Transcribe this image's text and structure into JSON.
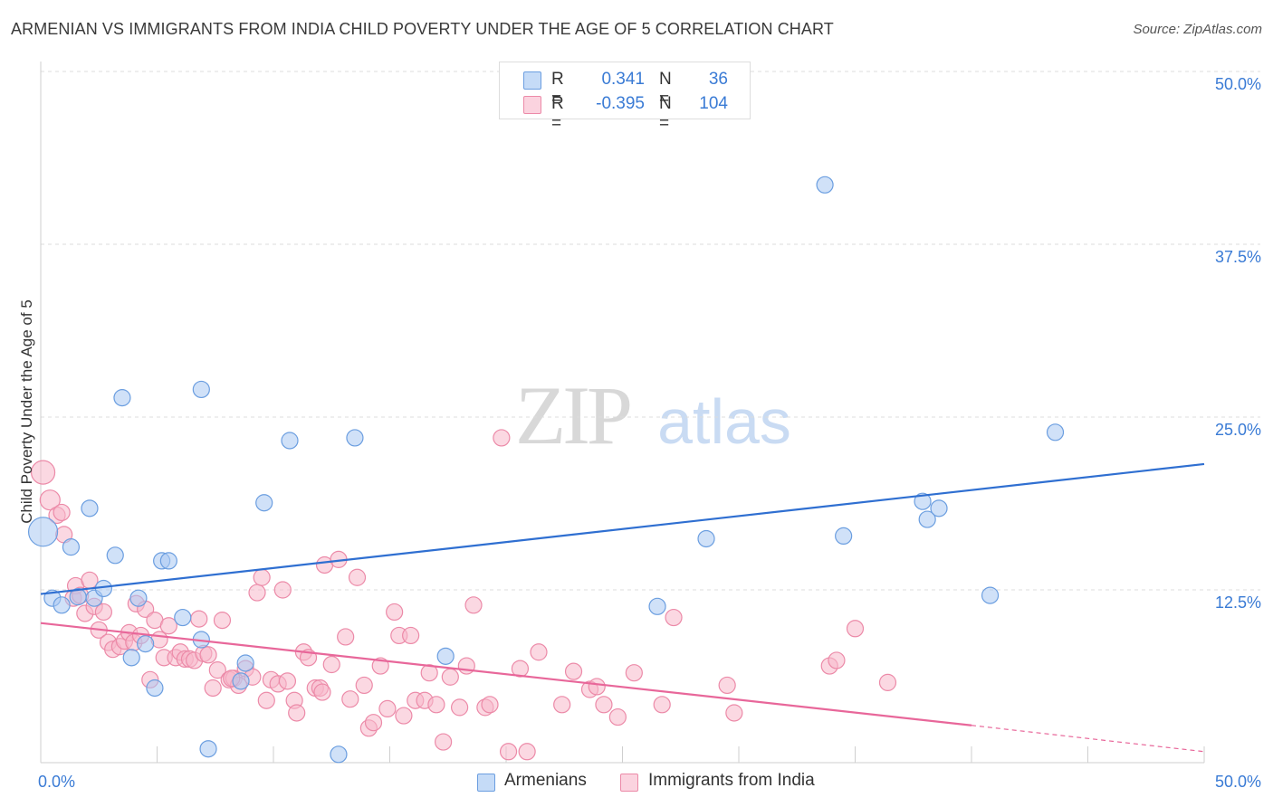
{
  "header": {
    "title": "ARMENIAN VS IMMIGRANTS FROM INDIA CHILD POVERTY UNDER THE AGE OF 5 CORRELATION CHART",
    "source": "Source: ZipAtlas.com"
  },
  "watermark": {
    "zip": "ZIP",
    "atlas": "atlas"
  },
  "legend": {
    "rows": [
      {
        "r_label": "R =",
        "r_value": "0.341",
        "n_label": "N =",
        "n_value": "36",
        "color": "#a9c8f3"
      },
      {
        "r_label": "R =",
        "r_value": "-0.395",
        "n_label": "N =",
        "n_value": "104",
        "color": "#f7b8cb"
      }
    ]
  },
  "bottom_legend": {
    "items": [
      {
        "label": "Armenians",
        "color": "#a9c8f3"
      },
      {
        "label": "Immigrants from India",
        "color": "#f7b8cb"
      }
    ]
  },
  "colors": {
    "blue_fill": "#a9c8f3",
    "blue_stroke": "#6b9ee0",
    "blue_line": "#2f6fd1",
    "pink_fill": "#f7b8cb",
    "pink_stroke": "#ec8aa8",
    "pink_line": "#e8679a",
    "axis_label": "#3a7bd5",
    "grid": "#dcdcdc"
  },
  "chart_data": {
    "type": "scatter",
    "title": "ARMENIAN VS IMMIGRANTS FROM INDIA CHILD POVERTY UNDER THE AGE OF 5 CORRELATION CHART",
    "xlabel": "",
    "ylabel": "Child Poverty Under the Age of 5",
    "xlim": [
      0,
      50
    ],
    "ylim": [
      0,
      50
    ],
    "x_tick_labels": [
      "0.0%",
      "50.0%"
    ],
    "y_ticks": [
      {
        "value": 12.5,
        "label": "12.5%"
      },
      {
        "value": 25,
        "label": "25.0%"
      },
      {
        "value": 37.5,
        "label": "37.5%"
      },
      {
        "value": 50,
        "label": "50.0%"
      }
    ],
    "grid": true,
    "legend_position": "top-center",
    "series": [
      {
        "name": "Armenians",
        "r": 0.341,
        "n": 36,
        "trend": {
          "x0": 0,
          "y0": 12.2,
          "x1": 50,
          "y1": 21.6
        },
        "points": [
          [
            0.1,
            16.7,
            16
          ],
          [
            0.5,
            11.9,
            9
          ],
          [
            0.9,
            11.4,
            9
          ],
          [
            1.3,
            15.6,
            9
          ],
          [
            1.6,
            12.0,
            9
          ],
          [
            2.1,
            18.4,
            9
          ],
          [
            2.3,
            11.9,
            9
          ],
          [
            2.7,
            12.6,
            9
          ],
          [
            3.2,
            15.0,
            9
          ],
          [
            3.5,
            26.4,
            9
          ],
          [
            3.9,
            7.6,
            9
          ],
          [
            4.2,
            11.9,
            9
          ],
          [
            4.5,
            8.6,
            9
          ],
          [
            4.9,
            5.4,
            9
          ],
          [
            5.2,
            14.6,
            9
          ],
          [
            5.5,
            14.6,
            9
          ],
          [
            6.1,
            10.5,
            9
          ],
          [
            6.9,
            8.9,
            9
          ],
          [
            6.9,
            27.0,
            9
          ],
          [
            7.2,
            1.0,
            9
          ],
          [
            8.6,
            5.9,
            9
          ],
          [
            8.8,
            7.2,
            9
          ],
          [
            9.6,
            18.8,
            9
          ],
          [
            10.7,
            23.3,
            9
          ],
          [
            12.8,
            0.6,
            9
          ],
          [
            13.5,
            23.5,
            9
          ],
          [
            17.4,
            7.7,
            9
          ],
          [
            26.5,
            11.3,
            9
          ],
          [
            28.6,
            16.2,
            9
          ],
          [
            33.7,
            41.8,
            9
          ],
          [
            34.5,
            16.4,
            9
          ],
          [
            37.9,
            18.9,
            9
          ],
          [
            38.1,
            17.6,
            9
          ],
          [
            38.6,
            18.4,
            9
          ],
          [
            40.8,
            12.1,
            9
          ],
          [
            43.6,
            23.9,
            9
          ]
        ]
      },
      {
        "name": "Immigrants from India",
        "r": -0.395,
        "n": 104,
        "trend": {
          "x0": 0,
          "y0": 10.1,
          "x1": 40,
          "y1": 2.7,
          "dash_x1": 50,
          "dash_y1": 0.8
        },
        "points": [
          [
            0.1,
            21.0,
            13
          ],
          [
            0.4,
            19.0,
            11
          ],
          [
            0.7,
            17.9,
            9
          ],
          [
            0.9,
            18.1,
            9
          ],
          [
            1.0,
            16.5,
            9
          ],
          [
            1.4,
            11.9,
            9
          ],
          [
            1.5,
            12.8,
            9
          ],
          [
            1.7,
            12.1,
            9
          ],
          [
            1.9,
            10.8,
            9
          ],
          [
            2.1,
            13.2,
            9
          ],
          [
            2.3,
            11.3,
            9
          ],
          [
            2.5,
            9.6,
            9
          ],
          [
            2.7,
            10.9,
            9
          ],
          [
            2.9,
            8.7,
            9
          ],
          [
            3.1,
            8.2,
            9
          ],
          [
            3.4,
            8.4,
            9
          ],
          [
            3.6,
            8.8,
            9
          ],
          [
            3.8,
            9.4,
            9
          ],
          [
            4.0,
            8.7,
            9
          ],
          [
            4.1,
            11.5,
            9
          ],
          [
            4.3,
            9.2,
            9
          ],
          [
            4.5,
            11.1,
            9
          ],
          [
            4.7,
            6.0,
            9
          ],
          [
            4.9,
            10.3,
            9
          ],
          [
            5.1,
            8.9,
            9
          ],
          [
            5.3,
            7.6,
            9
          ],
          [
            5.5,
            9.9,
            9
          ],
          [
            5.8,
            7.6,
            9
          ],
          [
            6.0,
            8.0,
            9
          ],
          [
            6.2,
            7.5,
            9
          ],
          [
            6.4,
            7.5,
            9
          ],
          [
            6.6,
            7.4,
            9
          ],
          [
            6.8,
            10.4,
            9
          ],
          [
            7.0,
            7.9,
            9
          ],
          [
            7.2,
            7.8,
            9
          ],
          [
            7.4,
            5.4,
            9
          ],
          [
            7.6,
            6.7,
            9
          ],
          [
            7.8,
            10.3,
            9
          ],
          [
            8.1,
            6.0,
            9
          ],
          [
            8.3,
            6.1,
            9
          ],
          [
            8.5,
            5.6,
            9
          ],
          [
            8.8,
            6.8,
            9
          ],
          [
            9.1,
            6.2,
            9
          ],
          [
            9.3,
            12.3,
            9
          ],
          [
            9.5,
            13.4,
            9
          ],
          [
            9.7,
            4.5,
            9
          ],
          [
            9.9,
            6.0,
            9
          ],
          [
            10.2,
            5.7,
            9
          ],
          [
            10.4,
            12.5,
            9
          ],
          [
            10.6,
            5.9,
            9
          ],
          [
            10.9,
            4.5,
            9
          ],
          [
            11.0,
            3.6,
            9
          ],
          [
            11.3,
            8.0,
            9
          ],
          [
            11.5,
            7.6,
            9
          ],
          [
            11.8,
            5.4,
            9
          ],
          [
            12.0,
            5.4,
            9
          ],
          [
            12.2,
            14.3,
            9
          ],
          [
            12.5,
            7.1,
            9
          ],
          [
            12.8,
            14.7,
            9
          ],
          [
            13.1,
            9.1,
            9
          ],
          [
            13.3,
            4.6,
            9
          ],
          [
            13.6,
            13.4,
            9
          ],
          [
            13.9,
            5.6,
            9
          ],
          [
            14.1,
            2.5,
            9
          ],
          [
            14.3,
            2.9,
            9
          ],
          [
            14.6,
            7.0,
            9
          ],
          [
            14.9,
            3.9,
            9
          ],
          [
            15.2,
            10.9,
            9
          ],
          [
            15.4,
            9.2,
            9
          ],
          [
            15.6,
            3.4,
            9
          ],
          [
            15.9,
            9.2,
            9
          ],
          [
            16.1,
            4.5,
            9
          ],
          [
            16.5,
            4.5,
            9
          ],
          [
            16.7,
            6.5,
            9
          ],
          [
            17.0,
            4.2,
            9
          ],
          [
            17.3,
            1.5,
            9
          ],
          [
            17.6,
            6.2,
            9
          ],
          [
            18.0,
            4.0,
            9
          ],
          [
            18.3,
            7.0,
            9
          ],
          [
            18.6,
            11.4,
            9
          ],
          [
            19.1,
            4.0,
            9
          ],
          [
            19.3,
            4.2,
            9
          ],
          [
            19.8,
            23.5,
            9
          ],
          [
            20.1,
            0.8,
            9
          ],
          [
            20.6,
            6.8,
            9
          ],
          [
            20.9,
            0.8,
            9
          ],
          [
            21.4,
            8.0,
            9
          ],
          [
            22.4,
            4.2,
            9
          ],
          [
            22.9,
            6.6,
            9
          ],
          [
            23.6,
            5.3,
            9
          ],
          [
            23.9,
            5.5,
            9
          ],
          [
            24.2,
            4.2,
            9
          ],
          [
            24.8,
            3.3,
            9
          ],
          [
            25.5,
            6.5,
            9
          ],
          [
            26.7,
            4.2,
            9
          ],
          [
            27.2,
            10.5,
            9
          ],
          [
            29.5,
            5.6,
            9
          ],
          [
            29.8,
            3.6,
            9
          ],
          [
            33.9,
            7.0,
            9
          ],
          [
            34.2,
            7.4,
            9
          ],
          [
            35.0,
            9.7,
            9
          ],
          [
            36.4,
            5.8,
            9
          ],
          [
            12.1,
            5.1,
            9
          ],
          [
            8.2,
            6.1,
            9
          ]
        ]
      }
    ]
  }
}
